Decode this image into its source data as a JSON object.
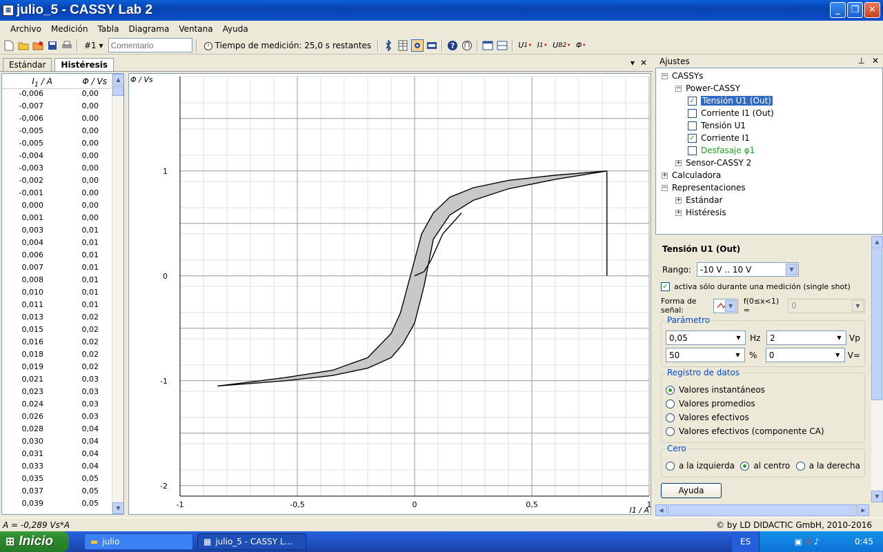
{
  "window": {
    "title": "julio_5 - CASSY Lab 2",
    "btn_min": "_",
    "btn_max": "❐",
    "btn_close": "✕"
  },
  "menu": [
    "Archivo",
    "Medición",
    "Tabla",
    "Diagrama",
    "Ventana",
    "Ayuda"
  ],
  "toolbar": {
    "record_num": "#1",
    "record_arrow": "▾",
    "comment_placeholder": "Comentario",
    "time_label": "Tiempo de medición: 25,0 s restantes",
    "btn_u1": "U",
    "btn_u1_sub": "1",
    "btn_i1": "I",
    "btn_i1_sub": "1",
    "btn_ub2": "U",
    "btn_ub2_sub": "B2",
    "btn_phi": "Φ"
  },
  "tabs": {
    "standard": "Estándar",
    "hysteresis": "Histéresis",
    "dropdown": "▾",
    "close": "✕"
  },
  "table": {
    "col1": "I1 / A",
    "col2": "Φ / Vs",
    "rows": [
      [
        "-0,006",
        "0,00"
      ],
      [
        "-0,007",
        "0,00"
      ],
      [
        "-0,006",
        "0,00"
      ],
      [
        "-0,005",
        "0,00"
      ],
      [
        "-0,005",
        "0,00"
      ],
      [
        "-0,004",
        "0,00"
      ],
      [
        "-0,003",
        "0,00"
      ],
      [
        "-0,002",
        "0,00"
      ],
      [
        "-0,001",
        "0,00"
      ],
      [
        "0,000",
        "0,00"
      ],
      [
        "0,001",
        "0,00"
      ],
      [
        "0,003",
        "0,01"
      ],
      [
        "0,004",
        "0,01"
      ],
      [
        "0,006",
        "0,01"
      ],
      [
        "0,007",
        "0,01"
      ],
      [
        "0,008",
        "0,01"
      ],
      [
        "0,010",
        "0,01"
      ],
      [
        "0,011",
        "0,01"
      ],
      [
        "0,013",
        "0,02"
      ],
      [
        "0,015",
        "0,02"
      ],
      [
        "0,016",
        "0,02"
      ],
      [
        "0,018",
        "0,02"
      ],
      [
        "0,019",
        "0,02"
      ],
      [
        "0,021",
        "0,03"
      ],
      [
        "0,023",
        "0,03"
      ],
      [
        "0,024",
        "0,03"
      ],
      [
        "0,026",
        "0,03"
      ],
      [
        "0,028",
        "0,04"
      ],
      [
        "0,030",
        "0,04"
      ],
      [
        "0,031",
        "0,04"
      ],
      [
        "0,033",
        "0,04"
      ],
      [
        "0,035",
        "0,05"
      ],
      [
        "0,037",
        "0,05"
      ],
      [
        "0,039",
        "0,05"
      ]
    ]
  },
  "chart_data": {
    "type": "line",
    "xlabel": "I1 / A",
    "ylabel": "Φ / Vs",
    "xlim": [
      -1,
      1
    ],
    "ylim": [
      -2.1,
      1.9
    ],
    "xticks": [
      "-1",
      "-0,5",
      "0",
      "0,5",
      "1"
    ],
    "yticks": [
      "-2",
      "-1",
      "0",
      "1"
    ],
    "grid": true,
    "series": [
      {
        "x": [
          0.82,
          0.6,
          0.4,
          0.25,
          0.15,
          0.08,
          0.03,
          0.0,
          -0.03,
          -0.06,
          -0.1,
          -0.2,
          -0.35,
          -0.55,
          -0.84
        ],
        "y": [
          1.0,
          0.96,
          0.91,
          0.84,
          0.75,
          0.6,
          0.4,
          0.15,
          -0.1,
          -0.35,
          -0.55,
          -0.78,
          -0.9,
          -0.97,
          -1.05
        ]
      },
      {
        "x": [
          -0.84,
          -0.55,
          -0.35,
          -0.2,
          -0.1,
          -0.05,
          0.0,
          0.04,
          0.08,
          0.15,
          0.25,
          0.4,
          0.6,
          0.82
        ],
        "y": [
          -1.05,
          -1.0,
          -0.95,
          -0.88,
          -0.78,
          -0.65,
          -0.45,
          -0.1,
          0.35,
          0.58,
          0.72,
          0.83,
          0.92,
          1.0
        ]
      },
      {
        "x": [
          0.0,
          0.04,
          0.07,
          0.12,
          0.2
        ],
        "y": [
          0.0,
          0.04,
          0.15,
          0.4,
          0.6
        ]
      },
      {
        "x": [
          0.82,
          0.82
        ],
        "y": [
          1.0,
          0.0
        ]
      }
    ]
  },
  "panel": {
    "title": "Ajustes",
    "pin": "⊥",
    "close": "✕",
    "tree": {
      "cassys": "CASSYs",
      "power": "Power-CASSY",
      "items": [
        {
          "label": "Tensión U1 (Out)",
          "checked": "✓"
        },
        {
          "label": "Corriente I1 (Out)",
          "checked": ""
        },
        {
          "label": "Tensión U1",
          "checked": ""
        },
        {
          "label": "Corriente I1",
          "checked": "✓"
        },
        {
          "label": "Desfasaje φ1",
          "checked": ""
        }
      ],
      "sensor": "Sensor-CASSY 2",
      "calc": "Calculadora",
      "repr": "Representaciones",
      "std": "Estándar",
      "hyst": "Histéresis"
    },
    "props": {
      "header": "Tensión U1 (Out)",
      "range_label": "Rango:",
      "range_value": "-10 V .. 10 V",
      "single_shot": "activa sólo durante una medición (single shot)",
      "single_shot_check": "✓",
      "waveform_label": "Forma de señal:",
      "f_label": "f(0≤x<1) =",
      "f_value": "0",
      "param_group": "Parámetro",
      "freq_value": "0,05",
      "freq_unit": "Hz",
      "amp_value": "2",
      "amp_unit": "Vp",
      "duty_value": "50",
      "duty_unit": "%",
      "offset_value": "0",
      "offset_unit": "V=",
      "log_group": "Registro de datos",
      "log_options": [
        "Valores instantáneos",
        "Valores promedios",
        "Valores efectivos",
        "Valores efectivos (componente CA)"
      ],
      "zero_group": "Cero",
      "zero_options": [
        "a la izquierda",
        "al centro",
        "a la derecha"
      ],
      "help": "Ayuda"
    }
  },
  "status": {
    "left": "A  = -0,289 Vs*A",
    "right": "© by LD DIDACTIC GmbH, 2010-2016"
  },
  "taskbar": {
    "start": "Inicio",
    "task1": "julio",
    "task2": "julio_5 - CASSY L...",
    "lang": "ES",
    "clock": "0:45"
  }
}
